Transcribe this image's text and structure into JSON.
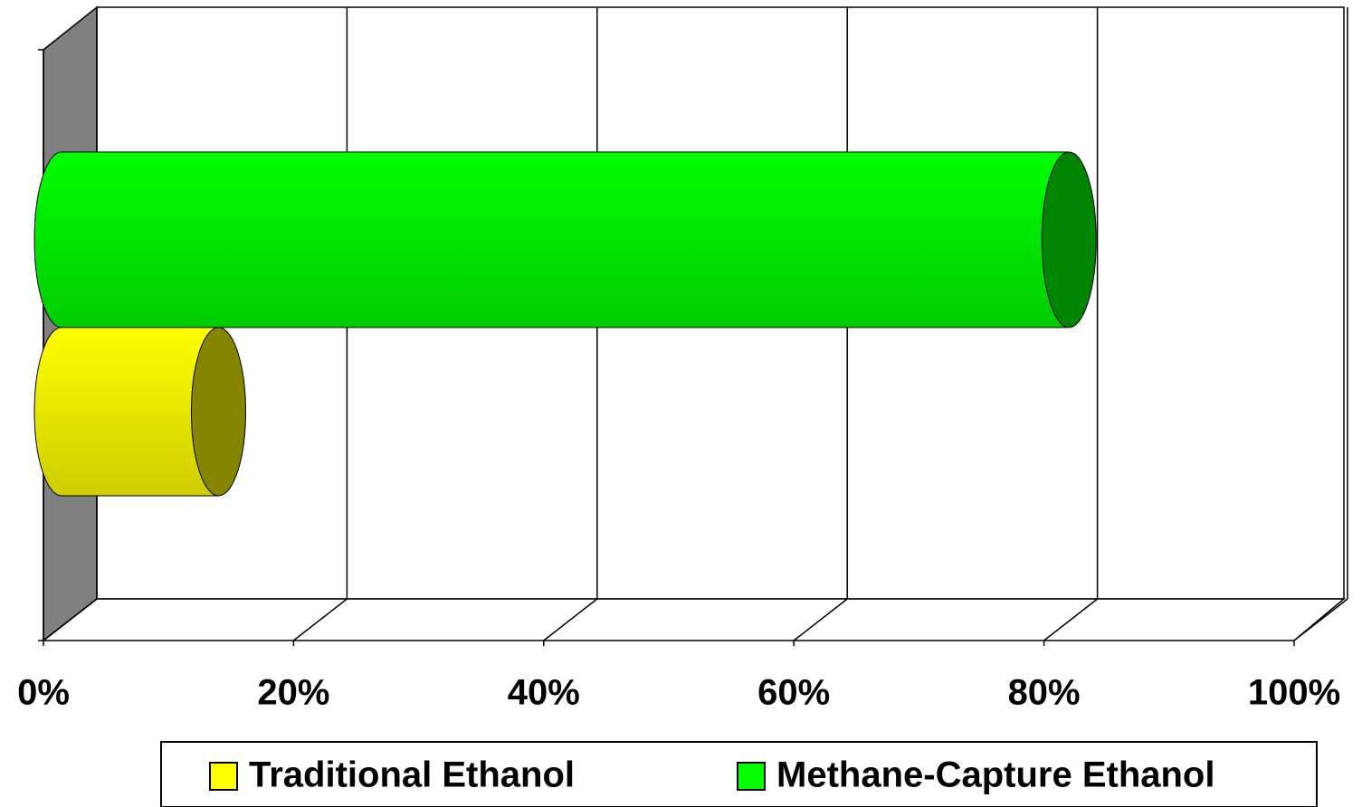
{
  "chart_data": {
    "type": "bar3d",
    "orientation": "horizontal",
    "categories": [
      null
    ],
    "series": [
      {
        "name": "Traditional Ethanol",
        "color": "#ffff00",
        "values": [
          14
        ]
      },
      {
        "name": "Methane-Capture Ethanol",
        "color": "#00ff00",
        "values": [
          82
        ]
      }
    ],
    "xlim": [
      0,
      100
    ],
    "xticks": [
      {
        "value": 0,
        "label": "0%"
      },
      {
        "value": 20,
        "label": "20%"
      },
      {
        "value": 40,
        "label": "40%"
      },
      {
        "value": 60,
        "label": "60%"
      },
      {
        "value": 80,
        "label": "80%"
      },
      {
        "value": 100,
        "label": "100%"
      }
    ],
    "grid": true,
    "legend": "bottom"
  }
}
